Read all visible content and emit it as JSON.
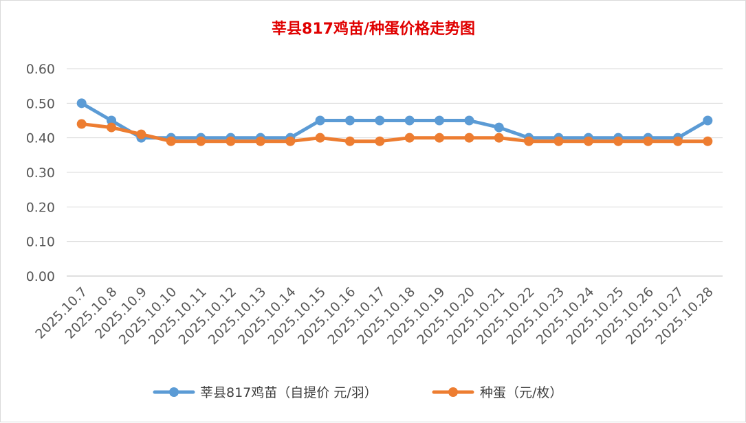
{
  "chart_data": {
    "type": "line",
    "title": "莘县817鸡苗/种蛋价格走势图",
    "categories": [
      "2025.10.7",
      "2025.10.8",
      "2025.10.9",
      "2025.10.10",
      "2025.10.11",
      "2025.10.12",
      "2025.10.13",
      "2025.10.14",
      "2025.10.15",
      "2025.10.16",
      "2025.10.17",
      "2025.10.18",
      "2025.10.19",
      "2025.10.20",
      "2025.10.21",
      "2025.10.22",
      "2025.10.23",
      "2025.10.24",
      "2025.10.25",
      "2025.10.26",
      "2025.10.27",
      "2025.10.28"
    ],
    "series": [
      {
        "name": "莘县817鸡苗（自提价 元/羽）",
        "color": "#5b9bd5",
        "values": [
          0.5,
          0.45,
          0.4,
          0.4,
          0.4,
          0.4,
          0.4,
          0.4,
          0.45,
          0.45,
          0.45,
          0.45,
          0.45,
          0.45,
          0.43,
          0.4,
          0.4,
          0.4,
          0.4,
          0.4,
          0.4,
          0.45
        ]
      },
      {
        "name": "种蛋（元/枚）",
        "color": "#ed7d31",
        "values": [
          0.44,
          0.43,
          0.41,
          0.39,
          0.39,
          0.39,
          0.39,
          0.39,
          0.4,
          0.39,
          0.39,
          0.4,
          0.4,
          0.4,
          0.4,
          0.39,
          0.39,
          0.39,
          0.39,
          0.39,
          0.39,
          0.39
        ]
      }
    ],
    "yticks": [
      "0.00",
      "0.10",
      "0.20",
      "0.30",
      "0.40",
      "0.50",
      "0.60"
    ],
    "ylim": [
      0,
      0.6
    ],
    "grid": true,
    "legend_position": "bottom"
  }
}
